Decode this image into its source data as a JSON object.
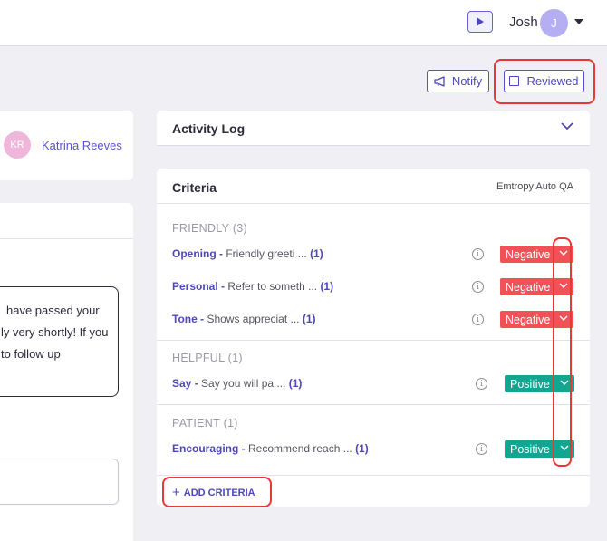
{
  "header": {
    "user_name": "Josh",
    "user_initial": "J",
    "icons": [
      "play-icon",
      "caret-down-icon"
    ]
  },
  "actions": {
    "notify_label": "Notify",
    "reviewed_label": "Reviewed",
    "reviewed_checked": false
  },
  "agent": {
    "initials": "KR",
    "name": "Katrina Reeves"
  },
  "message": {
    "lines": [
      "have passed your",
      "ly very shortly! If you",
      "to follow up"
    ]
  },
  "activity_log": {
    "title": "Activity Log"
  },
  "criteria": {
    "title": "Criteria",
    "source": "Emtropy Auto QA",
    "groups": [
      {
        "title": "FRIENDLY (3)",
        "items": [
          {
            "name": "Opening",
            "desc": "Friendly greeti ...",
            "count": "(1)",
            "rating": "Negative"
          },
          {
            "name": "Personal",
            "desc": "Refer to someth ...",
            "count": "(1)",
            "rating": "Negative"
          },
          {
            "name": "Tone",
            "desc": "Shows appreciat ...",
            "count": "(1)",
            "rating": "Negative"
          }
        ]
      },
      {
        "title": "HELPFUL (1)",
        "items": [
          {
            "name": "Say",
            "desc": "Say you will pa ...",
            "count": "(1)",
            "rating": "Positive"
          }
        ]
      },
      {
        "title": "PATIENT (1)",
        "items": [
          {
            "name": "Encouraging",
            "desc": "Recommend reach ...",
            "count": "(1)",
            "rating": "Positive"
          }
        ]
      }
    ],
    "add_label": "ADD CRITERIA"
  },
  "colors": {
    "accent": "#5b54c8",
    "negative": "#f25158",
    "positive": "#12a592",
    "highlight": "#e53935"
  }
}
